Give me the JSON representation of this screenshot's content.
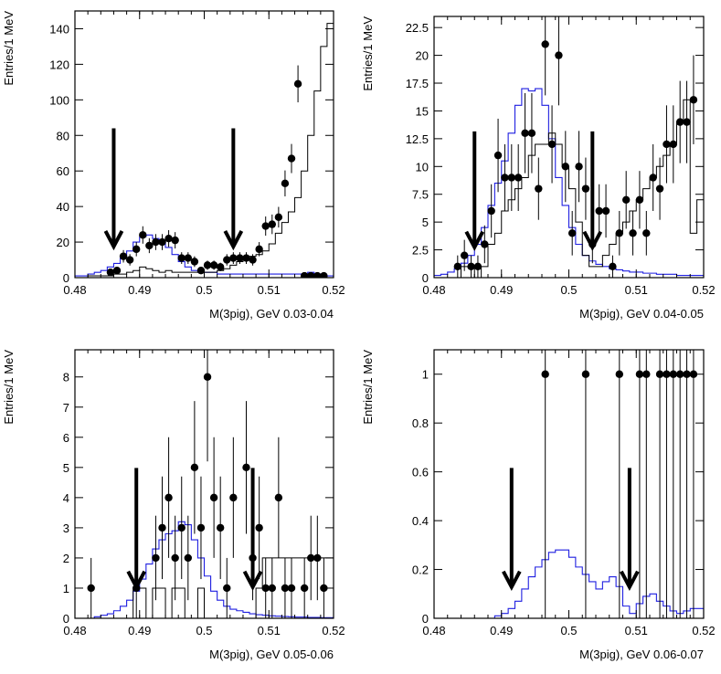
{
  "chart_data": [
    {
      "type": "histogram",
      "xlabel": "M(3pig), GeV 0.03-0.04",
      "ylabel": "Entries/1 MeV",
      "xlim": [
        0.48,
        0.52
      ],
      "ylim": [
        0,
        150
      ],
      "xticks": [
        0.48,
        0.49,
        0.5,
        0.51,
        0.52
      ],
      "xtick_labels": [
        "0.48",
        "0.49",
        "0.5",
        "0.51",
        "0.52"
      ],
      "yticks": [
        0,
        20,
        40,
        60,
        80,
        100,
        120,
        140
      ],
      "ytick_labels": [
        "0",
        "20",
        "40",
        "60",
        "80",
        "100",
        "120",
        "140"
      ],
      "arrows": [
        0.486,
        0.5045
      ],
      "points": {
        "x": [
          0.4855,
          0.4865,
          0.4875,
          0.4885,
          0.4895,
          0.4905,
          0.4915,
          0.4925,
          0.4935,
          0.4945,
          0.4955,
          0.4965,
          0.4975,
          0.4985,
          0.4995,
          0.5005,
          0.5015,
          0.5025,
          0.5035,
          0.5045,
          0.5055,
          0.5065,
          0.5075,
          0.5085,
          0.5095,
          0.5105,
          0.5115,
          0.5125,
          0.5135,
          0.5145,
          0.5155,
          0.5165,
          0.5175,
          0.5185
        ],
        "y": [
          3,
          4,
          12,
          10,
          16,
          24,
          18,
          20,
          20,
          22,
          21,
          11,
          11,
          9,
          4,
          7,
          7,
          6,
          10,
          11,
          11,
          11,
          10,
          16,
          29,
          30,
          34,
          53,
          67,
          109,
          1,
          1,
          1,
          1
        ],
        "err": [
          1.7,
          2,
          3.5,
          3.2,
          4,
          4.9,
          4.2,
          4.5,
          4.5,
          4.7,
          4.6,
          3.3,
          3.3,
          3,
          2,
          2.6,
          2.6,
          2.4,
          3.2,
          3.3,
          3.3,
          3.3,
          3.2,
          4,
          5.4,
          5.5,
          5.8,
          7.3,
          8.2,
          10.4,
          1,
          1,
          1,
          1
        ]
      },
      "hist_black": {
        "edges_start": 0.48,
        "bin_width": 0.001,
        "values": [
          0,
          0,
          1,
          1,
          1,
          1,
          2,
          2,
          3,
          4,
          6,
          5,
          4,
          3,
          4,
          3,
          3,
          3,
          3,
          3,
          3,
          3,
          4,
          5,
          7,
          9,
          11,
          12,
          13,
          15,
          19,
          25,
          31,
          37,
          45,
          60,
          80,
          105,
          130,
          143
        ]
      },
      "hist_blue": {
        "edges_start": 0.48,
        "bin_width": 0.001,
        "values": [
          1,
          1,
          2,
          3,
          4,
          6,
          8,
          11,
          15,
          20,
          23,
          24,
          22,
          20,
          17,
          13,
          9,
          6,
          4,
          3,
          3,
          3,
          2,
          2,
          2,
          2,
          2,
          2,
          2,
          2,
          2,
          2,
          2,
          2,
          2,
          2,
          3,
          2,
          1,
          1
        ]
      }
    },
    {
      "type": "histogram",
      "xlabel": "M(3pig), GeV 0.04-0.05",
      "ylabel": "Entries/1 MeV",
      "xlim": [
        0.48,
        0.52
      ],
      "ylim": [
        0,
        23.5
      ],
      "xticks": [
        0.48,
        0.49,
        0.5,
        0.51,
        0.52
      ],
      "xtick_labels": [
        "0.48",
        "0.49",
        "0.5",
        "0.51",
        "0.52"
      ],
      "yticks": [
        0,
        2.5,
        5,
        7.5,
        10,
        12.5,
        15,
        17.5,
        20,
        22.5
      ],
      "ytick_labels": [
        "0",
        "2.5",
        "5",
        "7.5",
        "10",
        "12.5",
        "15",
        "17.5",
        "20",
        "22.5"
      ],
      "arrows": [
        0.486,
        0.5035
      ],
      "points": {
        "x": [
          0.4835,
          0.4845,
          0.4855,
          0.4865,
          0.4875,
          0.4885,
          0.4895,
          0.4905,
          0.4915,
          0.4925,
          0.4935,
          0.4945,
          0.4955,
          0.4965,
          0.4975,
          0.4985,
          0.4995,
          0.5005,
          0.5015,
          0.5025,
          0.5035,
          0.5045,
          0.5055,
          0.5065,
          0.5075,
          0.5085,
          0.5095,
          0.5105,
          0.5115,
          0.5125,
          0.5135,
          0.5145,
          0.5155,
          0.5165,
          0.5175,
          0.5185
        ],
        "y": [
          1,
          2,
          1,
          1,
          3,
          6,
          11,
          9,
          9,
          9,
          13,
          13,
          8,
          21,
          12,
          20,
          10,
          4,
          10,
          8,
          3,
          6,
          6,
          1,
          4,
          7,
          4,
          7,
          4,
          9,
          8,
          12,
          12,
          14,
          14,
          16
        ],
        "err": [
          1,
          1.4,
          1,
          1,
          1.7,
          2.4,
          3.3,
          3,
          3,
          3,
          3.6,
          3.6,
          2.8,
          4.6,
          3.5,
          4.5,
          3.2,
          2,
          3.2,
          2.8,
          1.7,
          2.4,
          2.4,
          1,
          2,
          2.6,
          2,
          2.6,
          2,
          3,
          2.8,
          3.5,
          3.5,
          3.7,
          3.7,
          4
        ]
      },
      "hist_black": {
        "edges_start": 0.48,
        "bin_width": 0.001,
        "values": [
          0,
          0,
          0,
          0,
          1,
          1,
          0,
          1,
          3,
          4,
          6,
          7,
          8,
          9,
          11,
          12,
          12,
          13,
          12,
          10,
          8,
          5,
          2,
          1,
          1,
          2,
          3,
          4,
          5,
          6,
          7,
          8,
          9,
          10,
          11,
          12,
          14,
          16,
          4,
          7
        ]
      },
      "hist_blue": {
        "edges_start": 0.48,
        "bin_width": 0.001,
        "values": [
          0.2,
          0.3,
          0.5,
          0.8,
          1.3,
          2,
          3,
          4.5,
          6.5,
          8.5,
          10.5,
          13,
          15.5,
          17,
          16.8,
          17,
          15.5,
          12.5,
          9,
          6.5,
          4.5,
          3,
          2,
          1.5,
          1.2,
          1,
          0.8,
          0.7,
          0.6,
          0.5,
          0.5,
          0.4,
          0.4,
          0.3,
          0.3,
          0.3,
          0.2,
          0.2,
          0.2,
          0.2
        ]
      }
    },
    {
      "type": "histogram",
      "xlabel": "M(3pig), GeV 0.05-0.06",
      "ylabel": "Entries/1 MeV",
      "xlim": [
        0.48,
        0.52
      ],
      "ylim": [
        0,
        8.9
      ],
      "xticks": [
        0.48,
        0.49,
        0.5,
        0.51,
        0.52
      ],
      "xtick_labels": [
        "0.48",
        "0.49",
        "0.5",
        "0.51",
        "0.52"
      ],
      "yticks": [
        0,
        1,
        2,
        3,
        4,
        5,
        6,
        7,
        8
      ],
      "ytick_labels": [
        "0",
        "1",
        "2",
        "3",
        "4",
        "5",
        "6",
        "7",
        "8"
      ],
      "arrows": [
        0.4895,
        0.5075
      ],
      "points": {
        "x": [
          0.4825,
          0.4895,
          0.4925,
          0.4935,
          0.4945,
          0.4955,
          0.4965,
          0.4975,
          0.4985,
          0.4995,
          0.5005,
          0.5015,
          0.5025,
          0.5035,
          0.5045,
          0.5065,
          0.5075,
          0.5085,
          0.5095,
          0.5105,
          0.5115,
          0.5125,
          0.5135,
          0.5155,
          0.5165,
          0.5175,
          0.5185
        ],
        "y": [
          1,
          1,
          2,
          3,
          4,
          2,
          3,
          2,
          5,
          3,
          8,
          4,
          3,
          1,
          4,
          5,
          2,
          3,
          1,
          1,
          4,
          1,
          1,
          1,
          2,
          2,
          1
        ],
        "err": [
          1,
          1,
          1.4,
          1.7,
          2,
          1.4,
          1.7,
          1.4,
          2.2,
          1.7,
          2.8,
          2,
          1.7,
          1,
          2,
          2.2,
          1.4,
          1.7,
          1,
          1,
          2,
          1,
          1,
          1,
          1.4,
          1.4,
          1
        ]
      },
      "hist_black": {
        "edges_start": 0.48,
        "bin_width": 0.001,
        "values": [
          0,
          0,
          0,
          0,
          0,
          0,
          0,
          0,
          0,
          1,
          1,
          0,
          1,
          1,
          0,
          1,
          1,
          0,
          0,
          1,
          0,
          0,
          0,
          0,
          0,
          0,
          0,
          0,
          1,
          2,
          2,
          2,
          2,
          2,
          2,
          2,
          2,
          2,
          2,
          2
        ]
      },
      "hist_blue": {
        "edges_start": 0.48,
        "bin_width": 0.001,
        "values": [
          0,
          0,
          0,
          0.05,
          0.1,
          0.15,
          0.25,
          0.4,
          0.6,
          0.9,
          1.3,
          1.8,
          2.3,
          2.6,
          2.8,
          2.9,
          3.2,
          3.1,
          2.6,
          2,
          1.4,
          0.9,
          0.6,
          0.4,
          0.3,
          0.25,
          0.2,
          0.15,
          0.12,
          0.1,
          0.08,
          0.07,
          0.06,
          0.05,
          0.04,
          0.04,
          0.03,
          0.03,
          0.02,
          0.02
        ]
      }
    },
    {
      "type": "histogram",
      "xlabel": "M(3pig), GeV 0.06-0.07",
      "ylabel": "Entries/1 MeV",
      "xlim": [
        0.48,
        0.52
      ],
      "ylim": [
        0,
        1.1
      ],
      "xticks": [
        0.48,
        0.49,
        0.5,
        0.51,
        0.52
      ],
      "xtick_labels": [
        "0.48",
        "0.49",
        "0.5",
        "0.51",
        "0.52"
      ],
      "yticks": [
        0,
        0.2,
        0.4,
        0.6,
        0.8,
        1
      ],
      "ytick_labels": [
        "0",
        "0.2",
        "0.4",
        "0.6",
        "0.8",
        "1"
      ],
      "arrows": [
        0.4915,
        0.509
      ],
      "points": {
        "x": [
          0.4965,
          0.5025,
          0.5075,
          0.5105,
          0.5115,
          0.5135,
          0.5145,
          0.5155,
          0.5165,
          0.5175,
          0.5185
        ],
        "y": [
          1,
          1,
          1,
          1,
          1,
          1,
          1,
          1,
          1,
          1,
          1
        ],
        "err": [
          1,
          1,
          1,
          1,
          1,
          1,
          1,
          1,
          1,
          1,
          1
        ]
      },
      "hist_black": {
        "edges_start": 0.48,
        "bin_width": 0.001,
        "values": [
          0,
          0,
          0,
          0,
          0,
          0,
          0,
          0,
          0,
          0,
          0,
          0,
          0,
          0,
          0,
          0,
          0,
          0,
          0,
          0,
          0,
          0,
          0,
          0,
          0,
          0,
          0,
          0,
          0,
          0,
          0,
          0,
          0,
          0,
          0,
          0,
          0,
          0,
          0,
          0
        ]
      },
      "hist_blue": {
        "edges_start": 0.48,
        "bin_width": 0.001,
        "values": [
          0,
          0,
          0,
          0,
          0,
          0,
          0,
          0,
          0,
          0.01,
          0.02,
          0.04,
          0.07,
          0.12,
          0.17,
          0.21,
          0.24,
          0.27,
          0.28,
          0.28,
          0.25,
          0.21,
          0.18,
          0.15,
          0.12,
          0.15,
          0.17,
          0.13,
          0.05,
          0.02,
          0.06,
          0.09,
          0.1,
          0.07,
          0.05,
          0.03,
          0.02,
          0.03,
          0.04,
          0.04
        ]
      }
    }
  ]
}
